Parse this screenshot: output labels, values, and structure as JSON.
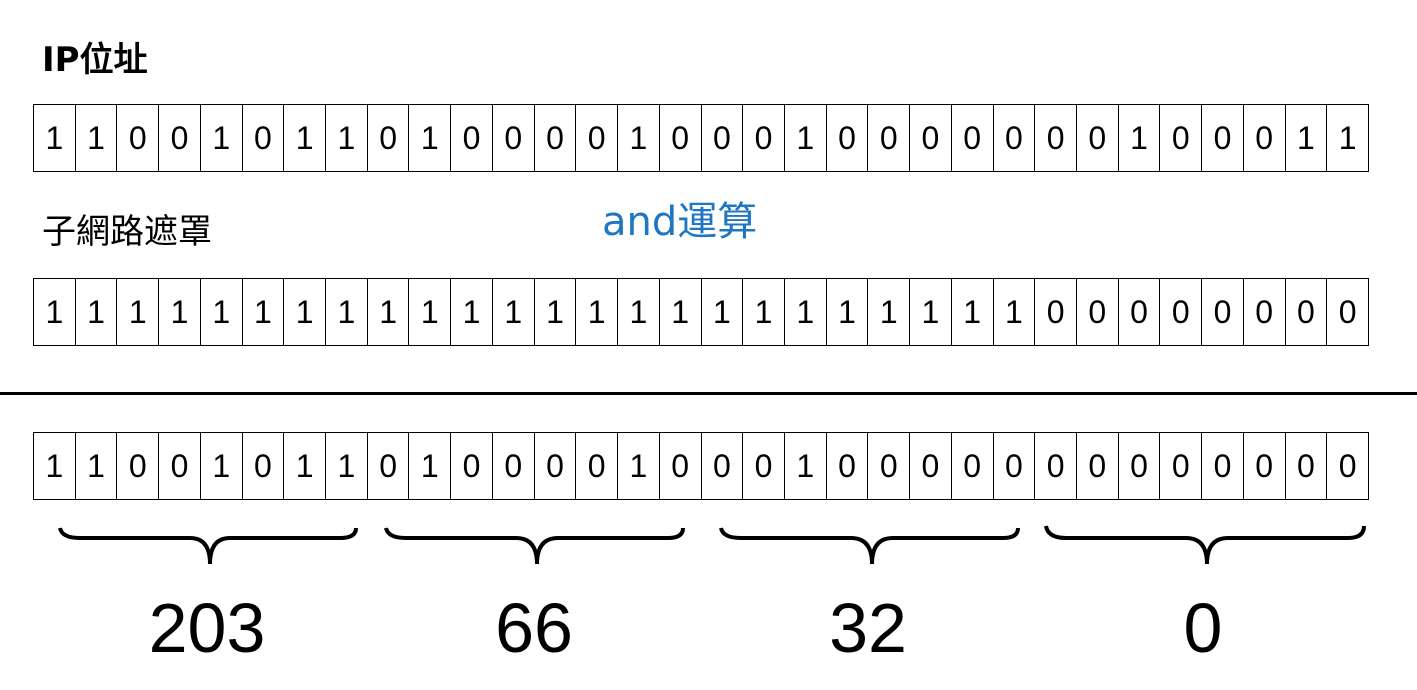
{
  "ip_label": "IP位址",
  "mask_label": "子網路遮罩",
  "operation_label": "and運算",
  "ip_bits": [
    "1",
    "1",
    "0",
    "0",
    "1",
    "0",
    "1",
    "1",
    "0",
    "1",
    "0",
    "0",
    "0",
    "0",
    "1",
    "0",
    "0",
    "0",
    "1",
    "0",
    "0",
    "0",
    "0",
    "0",
    "0",
    "0",
    "1",
    "0",
    "0",
    "0",
    "1",
    "1"
  ],
  "mask_bits": [
    "1",
    "1",
    "1",
    "1",
    "1",
    "1",
    "1",
    "1",
    "1",
    "1",
    "1",
    "1",
    "1",
    "1",
    "1",
    "1",
    "1",
    "1",
    "1",
    "1",
    "1",
    "1",
    "1",
    "1",
    "0",
    "0",
    "0",
    "0",
    "0",
    "0",
    "0",
    "0"
  ],
  "result_bits": [
    "1",
    "1",
    "0",
    "0",
    "1",
    "0",
    "1",
    "1",
    "0",
    "1",
    "0",
    "0",
    "0",
    "0",
    "1",
    "0",
    "0",
    "0",
    "1",
    "0",
    "0",
    "0",
    "0",
    "0",
    "0",
    "0",
    "0",
    "0",
    "0",
    "0",
    "0",
    "0"
  ],
  "octets": [
    "203",
    "66",
    "32",
    "0"
  ]
}
